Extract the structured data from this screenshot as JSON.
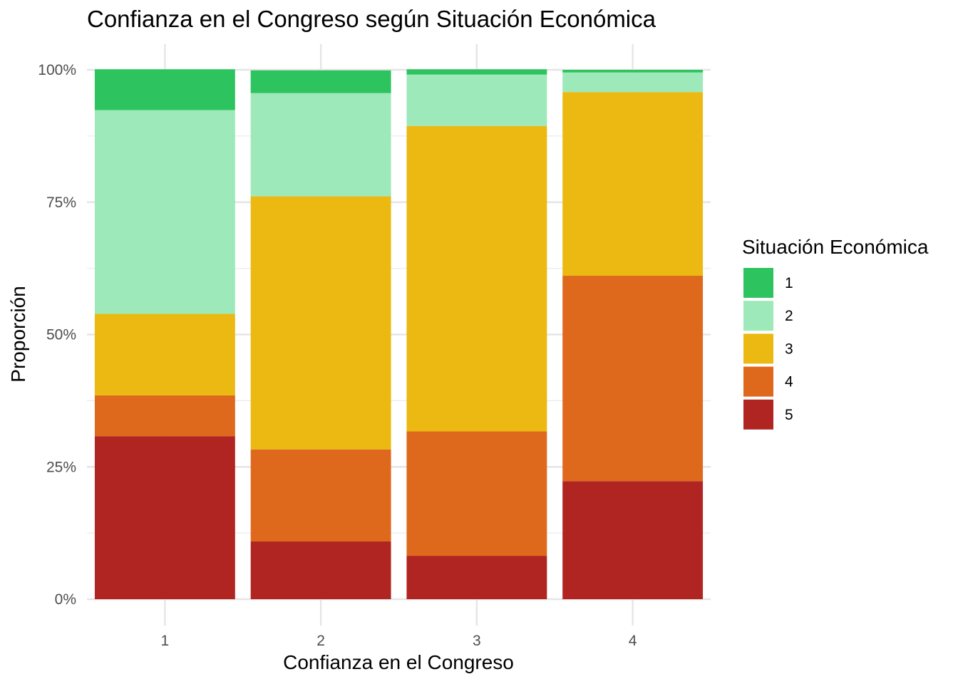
{
  "chart_data": {
    "type": "bar",
    "stacked": true,
    "percent": true,
    "title": "Confianza en el Congreso según Situación Económica",
    "xlabel": "Confianza en el Congreso",
    "ylabel": "Proporción",
    "categories": [
      "1",
      "2",
      "3",
      "4"
    ],
    "ylim": [
      0,
      1
    ],
    "yticks": [
      0,
      0.25,
      0.5,
      0.75,
      1
    ],
    "ytick_labels": [
      "0%",
      "25%",
      "50%",
      "75%",
      "100%"
    ],
    "grid": true,
    "legend": {
      "title": "Situación Económica",
      "position": "right"
    },
    "series": [
      {
        "name": "1",
        "color": "#2DC45F",
        "values": [
          0.077,
          0.043,
          0.01,
          0.005
        ]
      },
      {
        "name": "2",
        "color": "#9EE9BA",
        "values": [
          0.385,
          0.195,
          0.097,
          0.037
        ]
      },
      {
        "name": "3",
        "color": "#EBB912",
        "values": [
          0.154,
          0.478,
          0.577,
          0.347
        ]
      },
      {
        "name": "4",
        "color": "#DE691C",
        "values": [
          0.077,
          0.174,
          0.235,
          0.388
        ]
      },
      {
        "name": "5",
        "color": "#B02522",
        "values": [
          0.308,
          0.109,
          0.082,
          0.223
        ]
      }
    ]
  }
}
